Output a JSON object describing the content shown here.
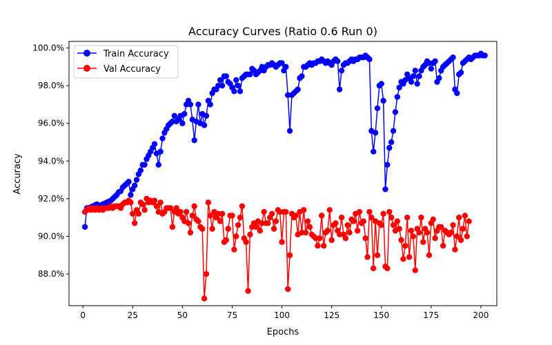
{
  "chart_data": {
    "type": "line",
    "title": "Accuracy Curves (Ratio 0.6 Run 0)",
    "xlabel": "Epochs",
    "ylabel": "Accuracy",
    "xlim": [
      -7,
      208
    ],
    "ylim": [
      0.8632,
      1.0035
    ],
    "x_ticks": [
      0,
      25,
      50,
      75,
      100,
      125,
      150,
      175,
      200
    ],
    "x_tick_labels": [
      "0",
      "25",
      "50",
      "75",
      "100",
      "125",
      "150",
      "175",
      "200"
    ],
    "y_ticks": [
      0.88,
      0.9,
      0.92,
      0.94,
      0.96,
      0.98,
      1.0
    ],
    "y_tick_labels": [
      "88.0%",
      "90.0%",
      "92.0%",
      "94.0%",
      "96.0%",
      "98.0%",
      "100.0%"
    ],
    "grid": false,
    "legend_position": "top-left",
    "series": [
      {
        "name": "Train Accuracy",
        "color": "#0000ff",
        "values": [
          0.905,
          0.915,
          0.9152,
          0.9155,
          0.916,
          0.9165,
          0.917,
          0.916,
          0.9165,
          0.917,
          0.9175,
          0.918,
          0.9185,
          0.919,
          0.92,
          0.921,
          0.922,
          0.9235,
          0.924,
          0.926,
          0.927,
          0.928,
          0.929,
          0.922,
          0.925,
          0.927,
          0.93,
          0.933,
          0.935,
          0.938,
          0.938,
          0.941,
          0.943,
          0.945,
          0.947,
          0.949,
          0.944,
          0.938,
          0.945,
          0.952,
          0.955,
          0.957,
          0.959,
          0.96,
          0.961,
          0.964,
          0.961,
          0.962,
          0.964,
          0.96,
          0.965,
          0.97,
          0.972,
          0.97,
          0.962,
          0.951,
          0.961,
          0.97,
          0.96,
          0.965,
          0.959,
          0.964,
          0.972,
          0.97,
          0.976,
          0.978,
          0.978,
          0.98,
          0.983,
          0.98,
          0.985,
          0.985,
          0.982,
          0.981,
          0.979,
          0.977,
          0.983,
          0.98,
          0.977,
          0.984,
          0.985,
          0.986,
          0.986,
          0.986,
          0.989,
          0.988,
          0.986,
          0.987,
          0.988,
          0.99,
          0.988,
          0.99,
          0.991,
          0.991,
          0.992,
          0.991,
          0.99,
          0.991,
          0.992,
          0.992,
          0.988,
          0.99,
          0.975,
          0.956,
          0.975,
          0.976,
          0.977,
          0.978,
          0.984,
          0.985,
          0.99,
          0.99,
          0.991,
          0.992,
          0.991,
          0.992,
          0.992,
          0.993,
          0.993,
          0.994,
          0.993,
          0.992,
          0.993,
          0.992,
          0.991,
          0.993,
          0.994,
          0.993,
          0.978,
          0.988,
          0.991,
          0.992,
          0.992,
          0.993,
          0.994,
          0.993,
          0.994,
          0.994,
          0.995,
          0.995,
          0.995,
          0.996,
          0.995,
          0.994,
          0.956,
          0.945,
          0.955,
          0.968,
          0.98,
          0.981,
          0.972,
          0.925,
          0.938,
          0.947,
          0.95,
          0.956,
          0.966,
          0.974,
          0.979,
          0.982,
          0.981,
          0.983,
          0.986,
          0.984,
          0.982,
          0.985,
          0.988,
          0.981,
          0.985,
          0.988,
          0.99,
          0.991,
          0.993,
          0.992,
          0.989,
          0.992,
          0.993,
          0.982,
          0.984,
          0.988,
          0.99,
          0.991,
          0.992,
          0.993,
          0.994,
          0.995,
          0.978,
          0.976,
          0.986,
          0.987,
          0.992,
          0.993,
          0.994,
          0.995,
          0.994,
          0.995,
          0.996,
          0.996,
          0.996,
          0.997,
          0.996,
          0.996
        ]
      },
      {
        "name": "Val Accuracy",
        "color": "#ff0000",
        "values": [
          0.913,
          0.914,
          0.915,
          0.914,
          0.915,
          0.914,
          0.915,
          0.914,
          0.915,
          0.914,
          0.915,
          0.915,
          0.915,
          0.916,
          0.915,
          0.916,
          0.916,
          0.916,
          0.915,
          0.917,
          0.918,
          0.918,
          0.919,
          0.918,
          0.912,
          0.907,
          0.914,
          0.912,
          0.918,
          0.917,
          0.914,
          0.92,
          0.918,
          0.919,
          0.918,
          0.919,
          0.916,
          0.913,
          0.918,
          0.912,
          0.913,
          0.915,
          0.915,
          0.915,
          0.905,
          0.913,
          0.915,
          0.912,
          0.913,
          0.91,
          0.908,
          0.913,
          0.907,
          0.902,
          0.911,
          0.916,
          0.909,
          0.908,
          0.905,
          0.904,
          0.867,
          0.88,
          0.918,
          0.911,
          0.904,
          0.913,
          0.91,
          0.912,
          0.908,
          0.912,
          0.897,
          0.898,
          0.904,
          0.911,
          0.911,
          0.893,
          0.9,
          0.906,
          0.91,
          0.916,
          0.899,
          0.897,
          0.871,
          0.901,
          0.905,
          0.907,
          0.905,
          0.908,
          0.903,
          0.907,
          0.913,
          0.907,
          0.907,
          0.91,
          0.912,
          0.904,
          0.908,
          0.914,
          0.913,
          0.897,
          0.913,
          0.913,
          0.872,
          0.89,
          0.912,
          0.91,
          0.911,
          0.901,
          0.913,
          0.902,
          0.914,
          0.902,
          0.908,
          0.905,
          0.901,
          0.9,
          0.899,
          0.895,
          0.899,
          0.911,
          0.895,
          0.902,
          0.903,
          0.914,
          0.898,
          0.906,
          0.907,
          0.903,
          0.901,
          0.91,
          0.901,
          0.899,
          0.906,
          0.902,
          0.909,
          0.908,
          0.912,
          0.903,
          0.913,
          0.907,
          0.908,
          0.899,
          0.889,
          0.913,
          0.91,
          0.883,
          0.908,
          0.89,
          0.907,
          0.906,
          0.912,
          0.884,
          0.883,
          0.913,
          0.91,
          0.906,
          0.903,
          0.908,
          0.904,
          0.898,
          0.888,
          0.895,
          0.91,
          0.889,
          0.903,
          0.9,
          0.882,
          0.904,
          0.902,
          0.91,
          0.897,
          0.904,
          0.902,
          0.89,
          0.907,
          0.909,
          0.899,
          0.903,
          0.905,
          0.905,
          0.895,
          0.903,
          0.902,
          0.901,
          0.902,
          0.906,
          0.893,
          0.9,
          0.91,
          0.898,
          0.904,
          0.911,
          0.9,
          0.908
        ]
      }
    ]
  }
}
